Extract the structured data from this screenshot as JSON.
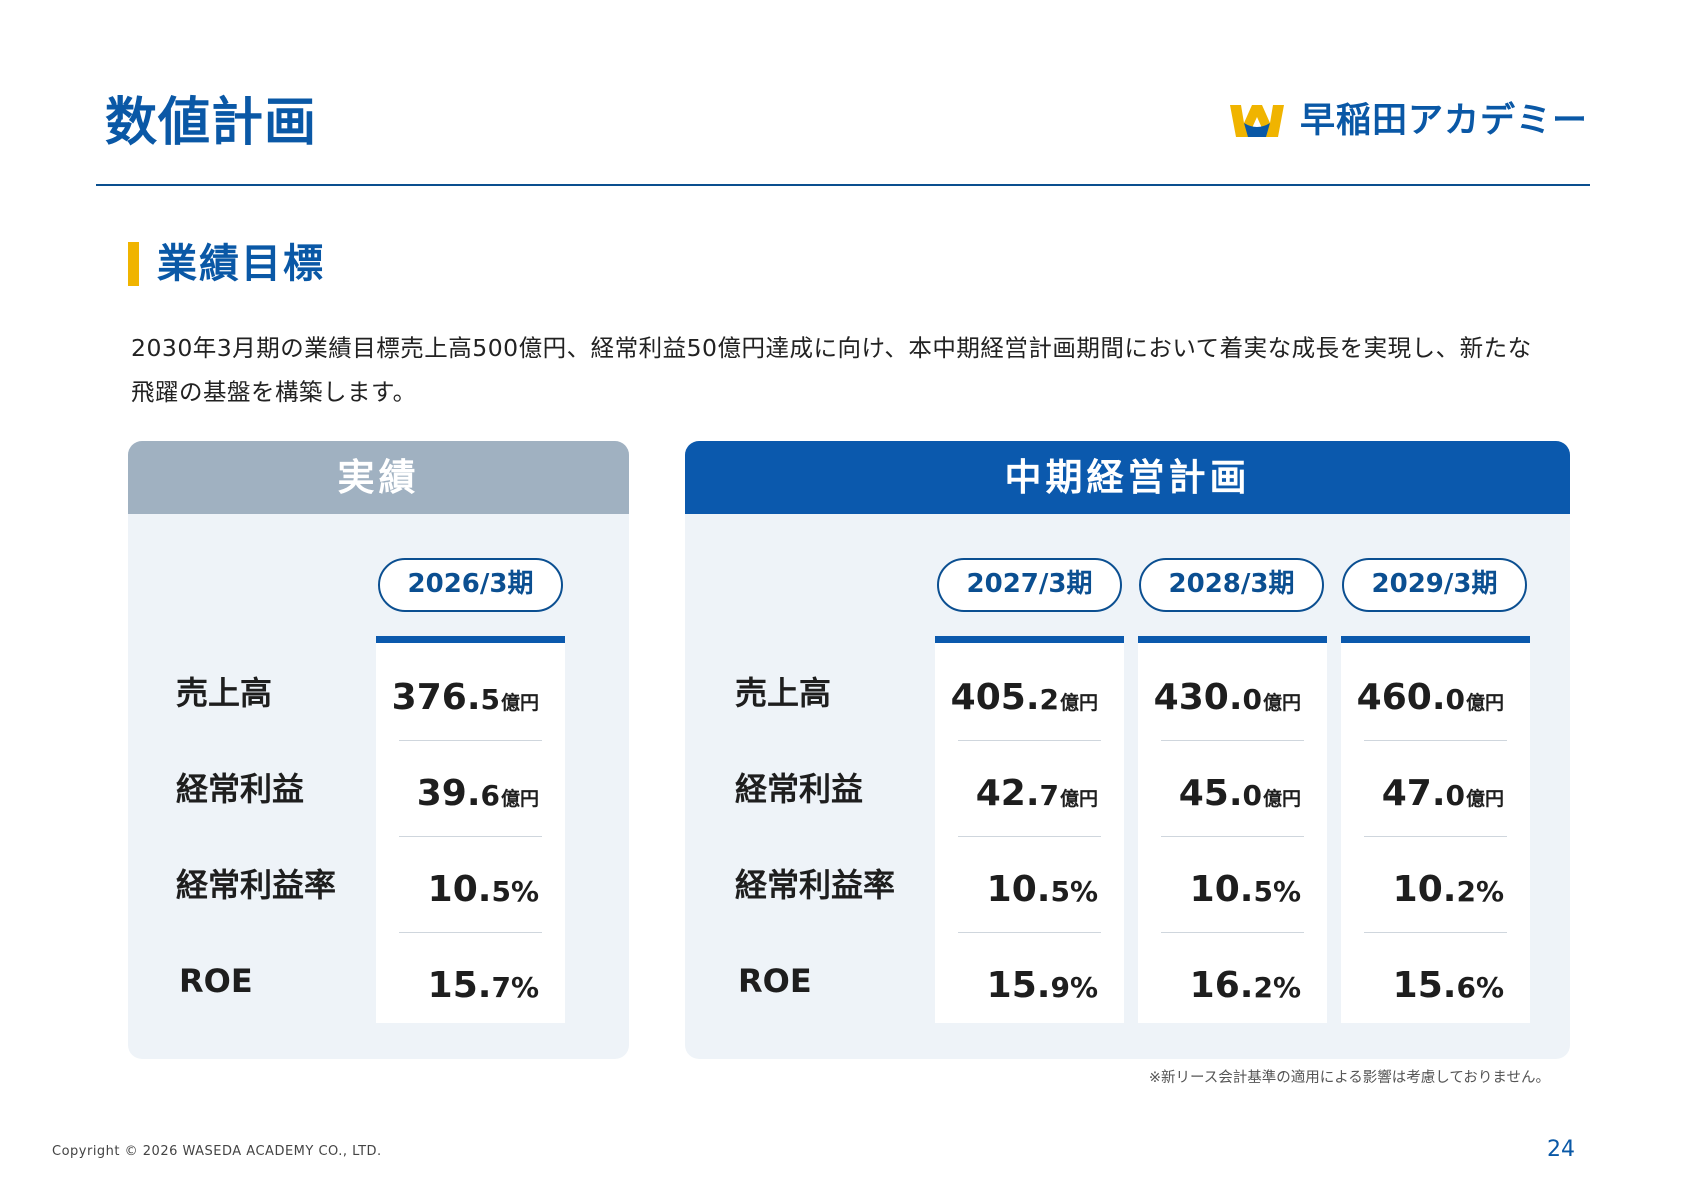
{
  "header": {
    "title": "数値計画",
    "logo_text": "早稲田アカデミー"
  },
  "section": {
    "title": "業績目標",
    "intro": "2030年3月期の業績目標売上高500億円、経常利益50億円達成に向け、本中期経営計画期間において着実な成長を実現し、新たな飛躍の基盤を構築します。"
  },
  "row_labels": [
    "売上高",
    "経常利益",
    "経常利益率",
    "ROE"
  ],
  "actual": {
    "heading": "実績",
    "columns": [
      {
        "period": "2026/3期",
        "sales": {
          "int": "376.",
          "dec": "5",
          "unit": "億円"
        },
        "ordinary_profit": {
          "int": "39.",
          "dec": "6",
          "unit": "億円"
        },
        "ordinary_margin": {
          "int": "10.",
          "dec": "5",
          "unit": "%"
        },
        "roe": {
          "int": "15.",
          "dec": "7",
          "unit": "%"
        }
      }
    ]
  },
  "plan": {
    "heading": "中期経営計画",
    "columns": [
      {
        "period": "2027/3期",
        "sales": {
          "int": "405.",
          "dec": "2",
          "unit": "億円"
        },
        "ordinary_profit": {
          "int": "42.",
          "dec": "7",
          "unit": "億円"
        },
        "ordinary_margin": {
          "int": "10.",
          "dec": "5",
          "unit": "%"
        },
        "roe": {
          "int": "15.",
          "dec": "9",
          "unit": "%"
        }
      },
      {
        "period": "2028/3期",
        "sales": {
          "int": "430.",
          "dec": "0",
          "unit": "億円"
        },
        "ordinary_profit": {
          "int": "45.",
          "dec": "0",
          "unit": "億円"
        },
        "ordinary_margin": {
          "int": "10.",
          "dec": "5",
          "unit": "%"
        },
        "roe": {
          "int": "16.",
          "dec": "2",
          "unit": "%"
        }
      },
      {
        "period": "2029/3期",
        "sales": {
          "int": "460.",
          "dec": "0",
          "unit": "億円"
        },
        "ordinary_profit": {
          "int": "47.",
          "dec": "0",
          "unit": "億円"
        },
        "ordinary_margin": {
          "int": "10.",
          "dec": "2",
          "unit": "%"
        },
        "roe": {
          "int": "15.",
          "dec": "6",
          "unit": "%"
        }
      }
    ]
  },
  "footnote": "※新リース会計基準の適用による影響は考慮しておりません。",
  "footer": {
    "copyright": "Copyright © 2026 WASEDA ACADEMY CO., LTD.",
    "page_number": "24"
  },
  "colors": {
    "brand_blue": "#0a58a6",
    "accent_yellow": "#f0b400",
    "actual_header": "#a0b1c1",
    "plan_header": "#0b59ad",
    "panel_bg": "#eef3f8"
  }
}
